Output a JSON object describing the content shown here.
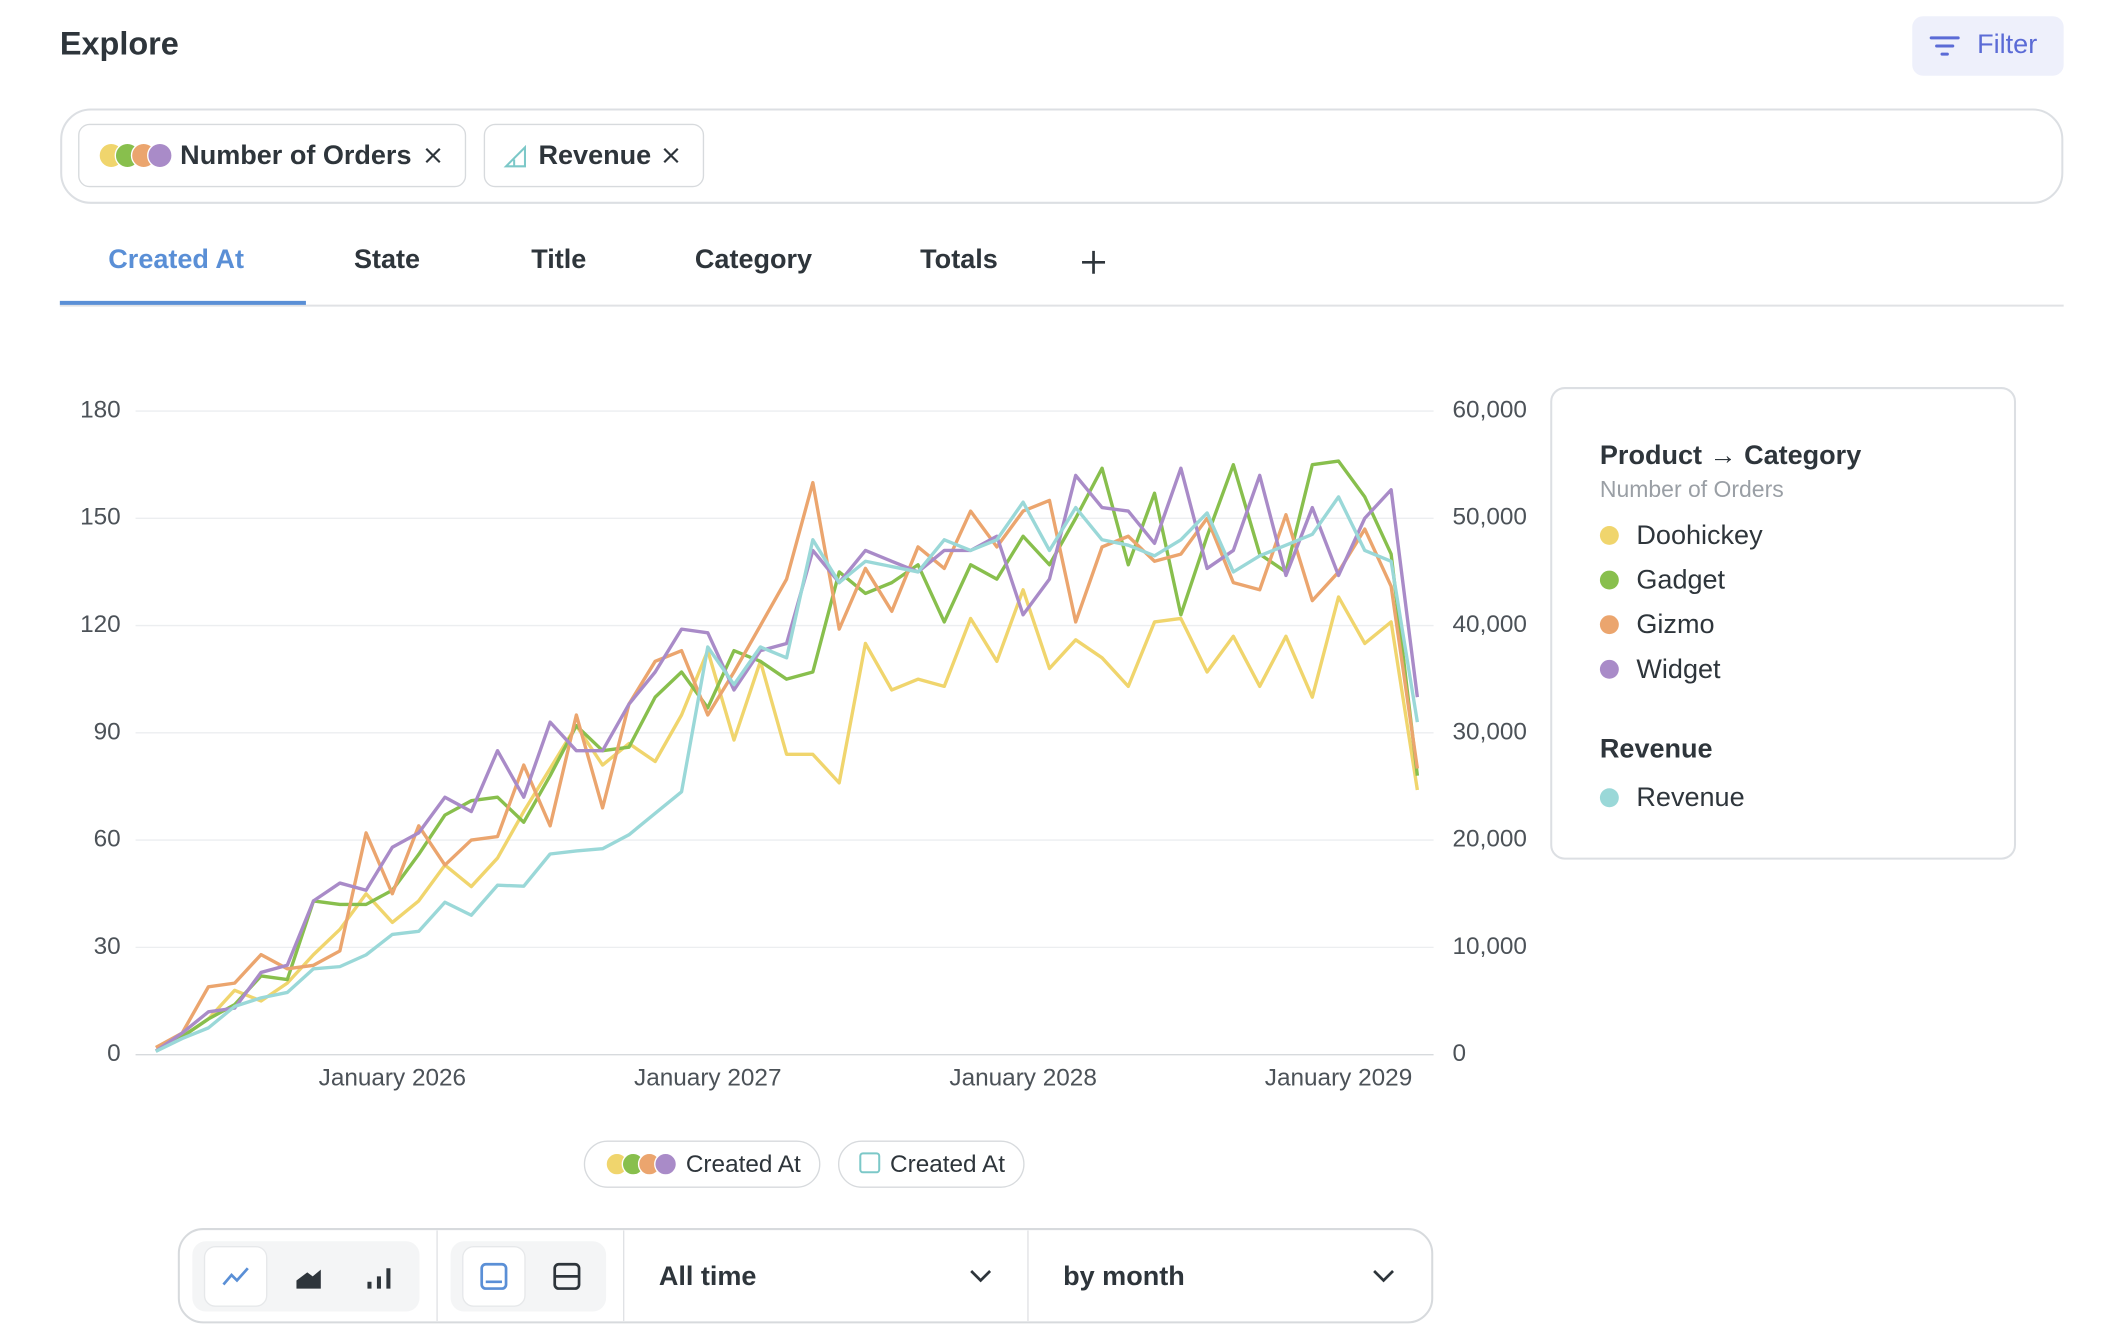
{
  "header": {
    "title": "Explore",
    "filter": "Filter"
  },
  "metrics": [
    "Number of Orders",
    "Revenue"
  ],
  "tabs": [
    "Created At",
    "State",
    "Title",
    "Category",
    "Totals"
  ],
  "chart_data": {
    "type": "line",
    "x": [
      "2025-04",
      "2025-05",
      "2025-06",
      "2025-07",
      "2025-08",
      "2025-09",
      "2025-10",
      "2025-11",
      "2025-12",
      "2026-01",
      "2026-02",
      "2026-03",
      "2026-04",
      "2026-05",
      "2026-06",
      "2026-07",
      "2026-08",
      "2026-09",
      "2026-10",
      "2026-11",
      "2026-12",
      "2027-01",
      "2027-02",
      "2027-03",
      "2027-04",
      "2027-05",
      "2027-06",
      "2027-07",
      "2027-08",
      "2027-09",
      "2027-10",
      "2027-11",
      "2027-12",
      "2028-01",
      "2028-02",
      "2028-03",
      "2028-04",
      "2028-05",
      "2028-06",
      "2028-07",
      "2028-08",
      "2028-09",
      "2028-10",
      "2028-11",
      "2028-12",
      "2029-01",
      "2029-02",
      "2029-03",
      "2029-04"
    ],
    "xticks": [
      {
        "value": "2026-01",
        "label": "January 2026"
      },
      {
        "value": "2027-01",
        "label": "January 2027"
      },
      {
        "value": "2028-01",
        "label": "January 2028"
      },
      {
        "value": "2029-01",
        "label": "January 2029"
      }
    ],
    "ylim": [
      0,
      180
    ],
    "yticks": [
      0,
      30,
      60,
      90,
      120,
      150,
      180
    ],
    "y2lim": [
      0,
      60000
    ],
    "y2ticks": [
      0,
      {
        "value": 10000,
        "label": "10,000"
      },
      {
        "value": 20000,
        "label": "20,000"
      },
      {
        "value": 30000,
        "label": "30,000"
      },
      {
        "value": 40000,
        "label": "40,000"
      },
      {
        "value": 50000,
        "label": "50,000"
      },
      {
        "value": 60000,
        "label": "60,000"
      }
    ],
    "grid": true,
    "legend": "right",
    "legend_title": "Product → Category",
    "legend_subtitle": "Number of Orders",
    "legend_group": "Revenue",
    "series": [
      {
        "name": "Doohickey",
        "color": "#f0d56d",
        "values": [
          1,
          5,
          10,
          18,
          15,
          20,
          28,
          35,
          45,
          37,
          43,
          53,
          47,
          55,
          68,
          80,
          92,
          81,
          87,
          82,
          95,
          113,
          88,
          110,
          84,
          84,
          76,
          115,
          102,
          105,
          103,
          122,
          110,
          130,
          108,
          116,
          111,
          103,
          121,
          122,
          107,
          117,
          103,
          117,
          100,
          128,
          115,
          121,
          74
        ]
      },
      {
        "name": "Gadget",
        "color": "#88bf4d",
        "values": [
          1,
          5,
          10,
          14,
          22,
          21,
          43,
          42,
          42,
          46,
          56,
          67,
          71,
          72,
          65,
          78,
          92,
          85,
          86,
          100,
          107,
          97,
          113,
          110,
          105,
          107,
          135,
          129,
          132,
          137,
          121,
          137,
          133,
          145,
          137,
          150,
          164,
          137,
          157,
          123,
          145,
          165,
          140,
          135,
          165,
          166,
          156,
          140,
          78
        ]
      },
      {
        "name": "Gizmo",
        "color": "#eba56e",
        "values": [
          2,
          6,
          19,
          20,
          28,
          24,
          25,
          29,
          62,
          45,
          64,
          53,
          60,
          61,
          81,
          64,
          95,
          69,
          98,
          110,
          113,
          95,
          107,
          120,
          133,
          160,
          119,
          136,
          124,
          142,
          136,
          152,
          142,
          152,
          155,
          121,
          142,
          145,
          138,
          140,
          150,
          132,
          130,
          151,
          127,
          135,
          147,
          131,
          80
        ]
      },
      {
        "name": "Widget",
        "color": "#a98bc8",
        "values": [
          1,
          6,
          12,
          13,
          23,
          25,
          43,
          48,
          46,
          58,
          62,
          72,
          68,
          85,
          72,
          93,
          85,
          85,
          98,
          107,
          119,
          118,
          102,
          113,
          115,
          141,
          132,
          141,
          138,
          135,
          141,
          141,
          145,
          123,
          133,
          162,
          153,
          152,
          143,
          164,
          136,
          141,
          162,
          134,
          153,
          134,
          150,
          158,
          100
        ]
      },
      {
        "name": "Revenue",
        "color": "#9ad8d8",
        "axis": "y2",
        "values": [
          300,
          1500,
          2500,
          4500,
          5300,
          5800,
          8000,
          8200,
          9300,
          11200,
          11500,
          14200,
          13000,
          15800,
          15700,
          18700,
          19000,
          19200,
          20500,
          22500,
          24500,
          38000,
          34500,
          38000,
          37000,
          48000,
          44000,
          46000,
          45500,
          45000,
          48000,
          47000,
          48000,
          51500,
          47000,
          51000,
          48000,
          47500,
          46500,
          48000,
          50500,
          45000,
          46500,
          47500,
          48500,
          52000,
          47000,
          46000,
          31000
        ]
      }
    ]
  },
  "dimension_pills": [
    "Created At",
    "Created At"
  ],
  "toolbar": {
    "range": "All time",
    "granularity": "by month"
  }
}
